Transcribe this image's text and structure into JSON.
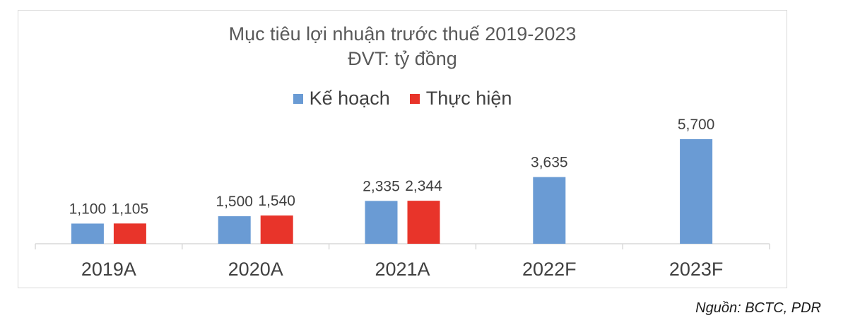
{
  "chart_data": {
    "type": "bar",
    "title": "Mục tiêu lợi nhuận trước thuế 2019-2023",
    "subtitle": "ĐVT: tỷ đồng",
    "categories": [
      "2019A",
      "2020A",
      "2021A",
      "2022F",
      "2023F"
    ],
    "series": [
      {
        "name": "Kế hoạch",
        "color": "#6a9bd4",
        "values": [
          1100,
          1500,
          2335,
          3635,
          5700
        ],
        "labels": [
          "1,100",
          "1,500",
          "2,335",
          "3,635",
          "5,700"
        ]
      },
      {
        "name": "Thực hiện",
        "color": "#e8342a",
        "values": [
          1105,
          1540,
          2344,
          null,
          null
        ],
        "labels": [
          "1,105",
          "1,540",
          "2,344",
          "",
          ""
        ]
      }
    ],
    "ylim": [
      0,
      6000
    ],
    "grid": false,
    "legend_position": "top"
  },
  "source": "Nguồn: BCTC, PDR"
}
